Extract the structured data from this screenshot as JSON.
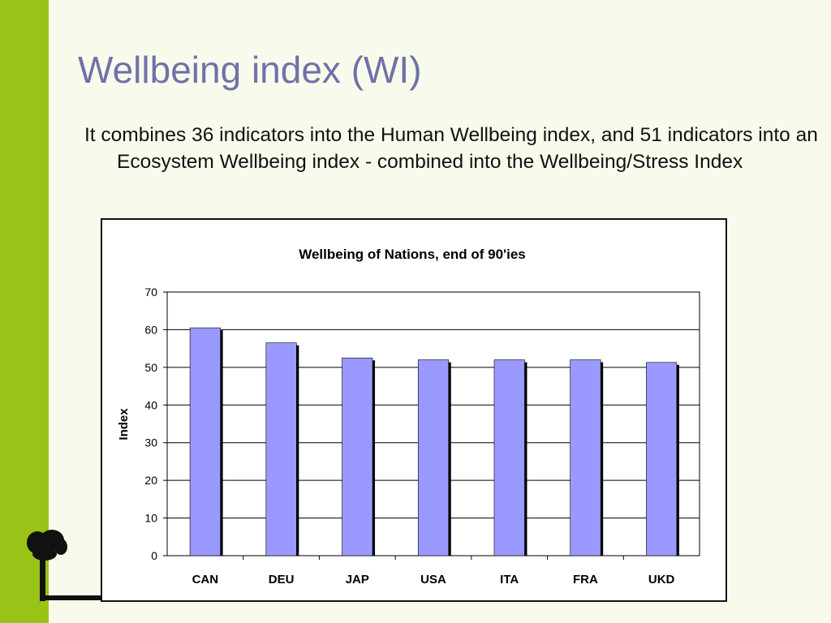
{
  "slide": {
    "title": "Wellbeing index (WI)",
    "body": "It combines 36 indicators into the Human  Wellbeing index, and 51 indicators into an Ecosystem Wellbeing index - combined into the Wellbeing/Stress Index"
  },
  "colors": {
    "accent_bar": "#99c316",
    "title": "#6f72a8",
    "background": "#f8fbec",
    "bar_fill": "#9999ff",
    "bar_shadow": "#000000"
  },
  "icons": {
    "logo": "tree-icon"
  },
  "chart_data": {
    "type": "bar",
    "title": "Wellbeing of Nations, end of 90'ies",
    "xlabel": "",
    "ylabel": "Index",
    "categories": [
      "CAN",
      "DEU",
      "JAP",
      "USA",
      "ITA",
      "FRA",
      "UKD"
    ],
    "values": [
      60.5,
      56.5,
      52.5,
      52,
      52,
      52,
      51.3
    ],
    "ylim": [
      0,
      70
    ],
    "yticks": [
      0,
      10,
      20,
      30,
      40,
      50,
      60,
      70
    ],
    "grid": true,
    "legend": "none"
  }
}
